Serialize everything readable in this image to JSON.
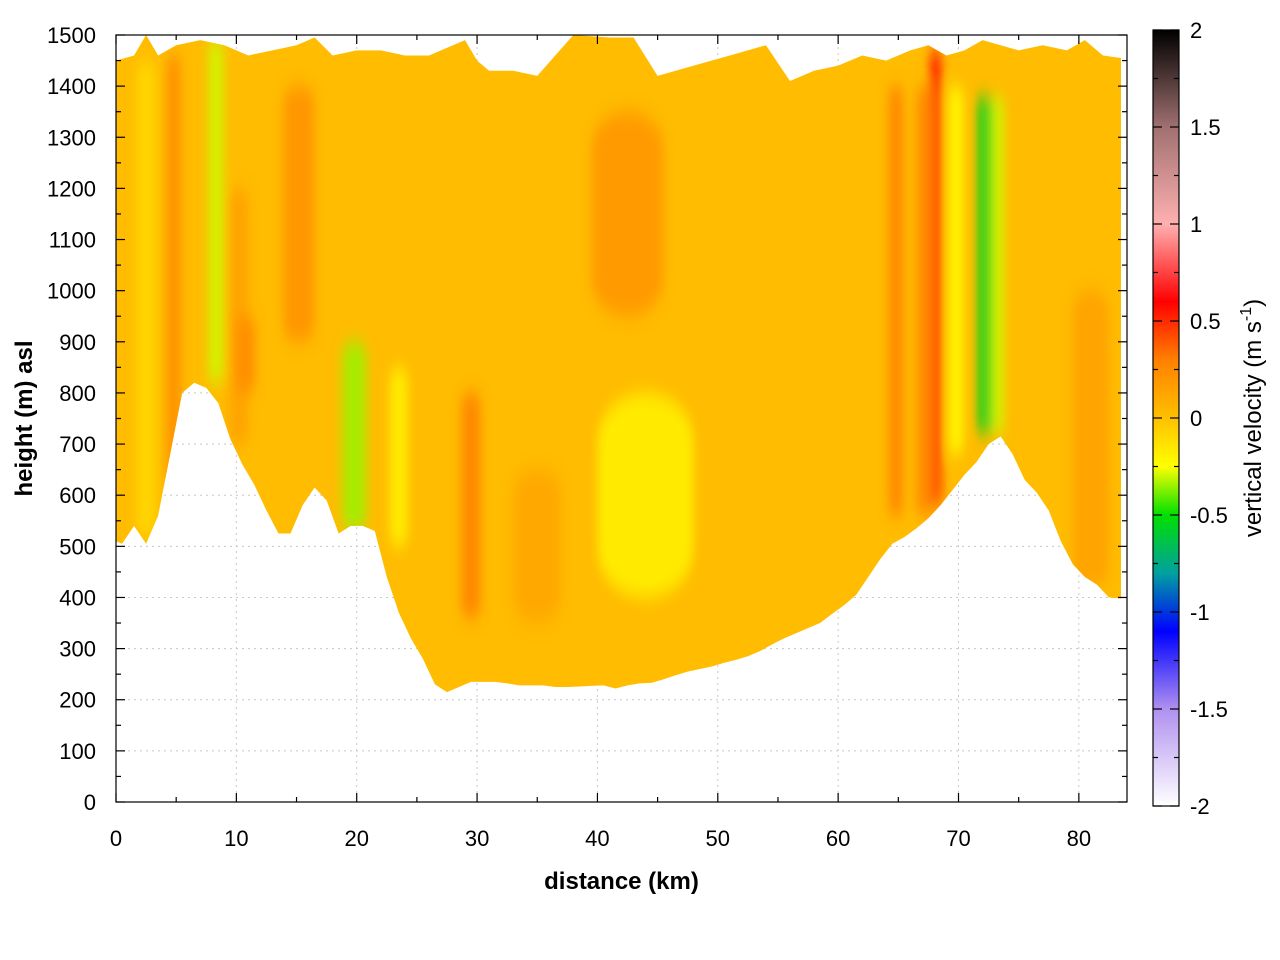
{
  "chart_data": {
    "type": "heatmap",
    "xlabel": "distance (km)",
    "ylabel": "height (m) asl",
    "xlim": [
      0,
      84
    ],
    "ylim": [
      0,
      1500
    ],
    "x_ticks": [
      "0",
      "10",
      "20",
      "30",
      "40",
      "50",
      "60",
      "70",
      "80"
    ],
    "y_ticks": [
      "0",
      "100",
      "200",
      "300",
      "400",
      "500",
      "600",
      "700",
      "800",
      "900",
      "1000",
      "1100",
      "1200",
      "1300",
      "1400",
      "1500"
    ],
    "grid": true,
    "colorbar": {
      "label_main": "vertical velocity (m s",
      "label_sup": "-1",
      "label_close": ")",
      "range": [
        -2,
        2
      ],
      "ticks": [
        "2",
        "1.5",
        "1",
        "0.5",
        "0",
        "-0.5",
        "-1",
        "-1.5",
        "-2"
      ],
      "colors": [
        {
          "value": -2.0,
          "color": "#ffffff"
        },
        {
          "value": -1.5,
          "color": "#b090f0"
        },
        {
          "value": -1.1,
          "color": "#0000ff"
        },
        {
          "value": -0.8,
          "color": "#00a0a0"
        },
        {
          "value": -0.5,
          "color": "#00e000"
        },
        {
          "value": -0.25,
          "color": "#ffff00"
        },
        {
          "value": 0.0,
          "color": "#ffc000"
        },
        {
          "value": 0.3,
          "color": "#ff8000"
        },
        {
          "value": 0.6,
          "color": "#ff0000"
        },
        {
          "value": 1.0,
          "color": "#ffb0b0"
        },
        {
          "value": 1.5,
          "color": "#a07070"
        },
        {
          "value": 2.0,
          "color": "#000000"
        }
      ]
    },
    "terrain_profile": {
      "x": [
        0,
        0.5,
        1.5,
        2.5,
        3.5,
        4.5,
        5.5,
        6.5,
        7.5,
        8.5,
        9.5,
        10.5,
        11.5,
        12.5,
        13.5,
        14.5,
        15.5,
        16.5,
        17.5,
        18.5,
        19.5,
        20.5,
        21.5,
        22.5,
        23.5,
        24.5,
        25.5,
        26.5,
        27.5,
        28.5,
        29.5,
        30.5,
        31.5,
        32.5,
        33.5,
        34.5,
        35.5,
        36.5,
        37.5,
        38.5,
        39.5,
        40.5,
        41.5,
        42.5,
        43.5,
        44.5,
        45.5,
        46.5,
        47.5,
        48.5,
        49.5,
        50.5,
        51.5,
        52.5,
        53.5,
        54.5,
        55.5,
        56.5,
        57.5,
        58.5,
        59.5,
        60.5,
        61.5,
        62.5,
        63.5,
        64.5,
        65.5,
        66.5,
        67.5,
        68.5,
        69.5,
        70.5,
        71.5,
        72.5,
        73.5,
        74.5,
        75.5,
        76.5,
        77.5,
        78.5,
        79.5,
        80.5,
        81.5,
        82.5,
        83.5
      ],
      "height": [
        510,
        505,
        540,
        505,
        560,
        680,
        800,
        820,
        810,
        780,
        710,
        660,
        620,
        570,
        525,
        525,
        580,
        615,
        590,
        525,
        540,
        540,
        530,
        440,
        370,
        320,
        280,
        230,
        215,
        225,
        235,
        235,
        235,
        232,
        228,
        228,
        228,
        225,
        225,
        226,
        227,
        228,
        222,
        228,
        232,
        233,
        240,
        248,
        255,
        260,
        265,
        272,
        278,
        285,
        295,
        308,
        320,
        330,
        340,
        350,
        368,
        385,
        405,
        440,
        475,
        505,
        518,
        535,
        555,
        580,
        610,
        640,
        665,
        700,
        715,
        680,
        630,
        605,
        570,
        510,
        465,
        440,
        425,
        400,
        398
      ]
    },
    "top_boundary": {
      "x": [
        0,
        1.5,
        2.5,
        3.5,
        5,
        7,
        9,
        11,
        13,
        15,
        16.5,
        18,
        20,
        22,
        24,
        26,
        27,
        29,
        30,
        31,
        33,
        35,
        38,
        41,
        43,
        45,
        48,
        51,
        54,
        56,
        58,
        60,
        62,
        64,
        66,
        67.5,
        69,
        70.5,
        72,
        73.5,
        75,
        77,
        79,
        80.5,
        82,
        83.5
      ],
      "height": [
        1450,
        1460,
        1500,
        1460,
        1480,
        1490,
        1480,
        1460,
        1470,
        1480,
        1495,
        1460,
        1470,
        1470,
        1460,
        1460,
        1470,
        1490,
        1450,
        1430,
        1430,
        1420,
        1500,
        1495,
        1495,
        1420,
        1440,
        1460,
        1480,
        1410,
        1430,
        1440,
        1460,
        1450,
        1470,
        1480,
        1460,
        1470,
        1490,
        1480,
        1470,
        1480,
        1470,
        1490,
        1460,
        1455
      ]
    },
    "velocity_bands": [
      {
        "x_center": 2.5,
        "width_km": 1.6,
        "bottom": 520,
        "top": 1450,
        "w": -0.1
      },
      {
        "x_center": 4.8,
        "width_km": 1.2,
        "bottom": 620,
        "top": 1460,
        "w": 0.25
      },
      {
        "x_center": 8.3,
        "width_km": 1.3,
        "bottom": 820,
        "top": 1490,
        "w": -0.3
      },
      {
        "x_center": 10.2,
        "width_km": 1.6,
        "bottom": 700,
        "top": 1200,
        "w": 0.15
      },
      {
        "x_center": 10.8,
        "width_km": 1.6,
        "bottom": 800,
        "top": 950,
        "w": 0.25
      },
      {
        "x_center": 15.2,
        "width_km": 2.6,
        "bottom": 900,
        "top": 1400,
        "w": 0.22
      },
      {
        "x_center": 19.8,
        "width_km": 2.0,
        "bottom": 530,
        "top": 900,
        "w": -0.35
      },
      {
        "x_center": 23.5,
        "width_km": 1.5,
        "bottom": 500,
        "top": 850,
        "w": -0.2
      },
      {
        "x_center": 29.5,
        "width_km": 1.6,
        "bottom": 360,
        "top": 800,
        "w": 0.3
      },
      {
        "x_center": 35.0,
        "width_km": 4.0,
        "bottom": 350,
        "top": 650,
        "w": 0.12
      },
      {
        "x_center": 42.5,
        "width_km": 6.0,
        "bottom": 950,
        "top": 1350,
        "w": 0.2
      },
      {
        "x_center": 44.0,
        "width_km": 8.0,
        "bottom": 400,
        "top": 800,
        "w": -0.2
      },
      {
        "x_center": 64.8,
        "width_km": 1.2,
        "bottom": 560,
        "top": 1400,
        "w": 0.3
      },
      {
        "x_center": 68.1,
        "width_km": 0.9,
        "bottom": 580,
        "top": 1470,
        "w": 0.6
      },
      {
        "x_center": 67.2,
        "width_km": 1.4,
        "bottom": 560,
        "top": 1400,
        "w": 0.28
      },
      {
        "x_center": 69.8,
        "width_km": 1.2,
        "bottom": 680,
        "top": 1400,
        "w": -0.25
      },
      {
        "x_center": 72.2,
        "width_km": 1.3,
        "bottom": 720,
        "top": 1380,
        "w": -0.55
      },
      {
        "x_center": 73.3,
        "width_km": 1.0,
        "bottom": 720,
        "top": 1380,
        "w": -0.3
      },
      {
        "x_center": 81.0,
        "width_km": 3.0,
        "bottom": 420,
        "top": 1000,
        "w": 0.15
      }
    ]
  }
}
